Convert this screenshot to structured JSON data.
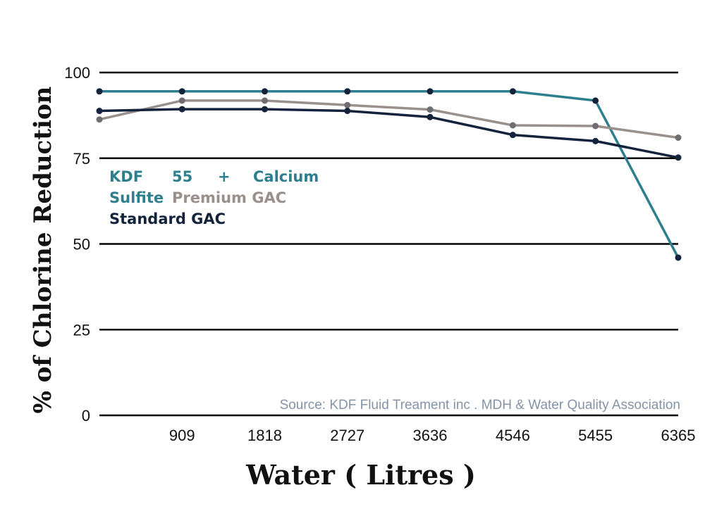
{
  "chart_data": {
    "type": "line",
    "title": "",
    "xlabel": "Water ( Litres )",
    "ylabel": "% of Chlorine Reduction",
    "x_ticks": [
      "909",
      "1818",
      "2727",
      "3636",
      "4546",
      "5455",
      "6365"
    ],
    "y_ticks": [
      "0",
      "25",
      "50",
      "75",
      "100"
    ],
    "ylim": [
      0,
      100
    ],
    "grid": "horizontal",
    "x": [
      0,
      909,
      1818,
      2727,
      3636,
      4546,
      5455,
      6365
    ],
    "series": [
      {
        "name": "KDF 55 + Calcium Sulfite",
        "color": "#2e7f8e",
        "values": [
          94.5,
          94.5,
          94.5,
          94.5,
          94.5,
          94.5,
          91.8,
          46.0
        ]
      },
      {
        "name": "Premium GAC",
        "color": "#99908c",
        "values": [
          86.3,
          91.8,
          91.8,
          90.5,
          89.2,
          84.6,
          84.4,
          81.0
        ]
      },
      {
        "name": "Standard GAC",
        "color": "#14233c",
        "values": [
          88.8,
          89.3,
          89.3,
          88.8,
          87.0,
          81.8,
          80.0,
          75.2
        ]
      }
    ],
    "legend": {
      "position": "left",
      "line1": [
        "KDF",
        "55",
        "+",
        "Calcium"
      ],
      "line2a": "Sulfite",
      "line2b": "Premium GAC",
      "line3": "Standard GAC"
    },
    "annotation": "Source: KDF Fluid Treament inc . MDH & Water Quality Association"
  }
}
